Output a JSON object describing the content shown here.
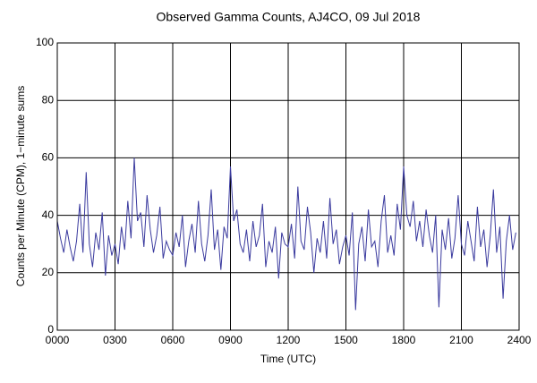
{
  "chart_data": {
    "type": "line",
    "title": "Observed Gamma Counts, AJ4CO, 09 Jul 2018",
    "x_label": "Time (UTC)",
    "y_label": "Counts per Minute (CPM), 1−minute sums",
    "x": [
      0,
      10,
      20,
      30,
      40,
      50,
      60,
      70,
      80,
      90,
      100,
      110,
      120,
      130,
      140,
      150,
      160,
      170,
      180,
      190,
      200,
      210,
      220,
      230,
      240,
      250,
      260,
      270,
      280,
      290,
      300,
      310,
      320,
      330,
      340,
      350,
      360,
      370,
      380,
      390,
      400,
      410,
      420,
      430,
      440,
      450,
      460,
      470,
      480,
      490,
      500,
      510,
      520,
      530,
      540,
      550,
      560,
      570,
      580,
      590,
      600,
      610,
      620,
      630,
      640,
      650,
      660,
      670,
      680,
      690,
      700,
      710,
      720,
      730,
      740,
      750,
      760,
      770,
      780,
      790,
      800,
      810,
      820,
      830,
      840,
      850,
      860,
      870,
      880,
      890,
      900,
      910,
      920,
      930,
      940,
      950,
      960,
      970,
      980,
      990,
      1000,
      1010,
      1020,
      1030,
      1040,
      1050,
      1060,
      1070,
      1080,
      1090,
      1100,
      1110,
      1120,
      1130,
      1140,
      1150,
      1160,
      1170,
      1180,
      1190,
      1200,
      1210,
      1220,
      1230,
      1240,
      1250,
      1260,
      1270,
      1280,
      1290,
      1300,
      1310,
      1320,
      1330,
      1340,
      1350,
      1360,
      1370,
      1380,
      1390,
      1400,
      1410,
      1420,
      1430
    ],
    "series": [
      {
        "color": "#3a3a9e",
        "values": [
          38,
          32,
          27,
          35,
          29,
          24,
          31,
          44,
          27,
          55,
          30,
          22,
          34,
          28,
          41,
          19,
          33,
          26,
          30,
          23,
          36,
          28,
          45,
          32,
          60,
          38,
          41,
          29,
          47,
          35,
          27,
          33,
          43,
          25,
          31,
          28,
          26,
          34,
          29,
          40,
          22,
          31,
          37,
          27,
          45,
          30,
          24,
          33,
          49,
          28,
          35,
          21,
          36,
          32,
          57,
          38,
          42,
          30,
          27,
          35,
          24,
          38,
          29,
          33,
          44,
          22,
          31,
          27,
          36,
          18,
          34,
          30,
          29,
          37,
          25,
          50,
          31,
          28,
          43,
          34,
          20,
          32,
          27,
          38,
          25,
          46,
          30,
          35,
          23,
          29,
          33,
          26,
          41,
          7,
          30,
          36,
          24,
          42,
          29,
          31,
          22,
          38,
          47,
          27,
          33,
          26,
          44,
          35,
          57,
          40,
          36,
          45,
          31,
          38,
          29,
          42,
          33,
          27,
          40,
          8,
          35,
          28,
          39,
          25,
          32,
          47,
          30,
          26,
          38,
          31,
          24,
          43,
          29,
          35,
          22,
          33,
          49,
          27,
          36,
          11,
          31,
          40,
          28,
          34
        ]
      }
    ],
    "xlim": [
      0,
      1440
    ],
    "xticks": [
      {
        "value": 0,
        "label": "0000"
      },
      {
        "value": 180,
        "label": "0300"
      },
      {
        "value": 360,
        "label": "0600"
      },
      {
        "value": 540,
        "label": "0900"
      },
      {
        "value": 720,
        "label": "1200"
      },
      {
        "value": 900,
        "label": "1500"
      },
      {
        "value": 1080,
        "label": "1800"
      },
      {
        "value": 1260,
        "label": "2100"
      },
      {
        "value": 1440,
        "label": "2400"
      }
    ],
    "ylim": [
      0,
      100
    ],
    "yticks": [
      0,
      20,
      40,
      60,
      80,
      100
    ],
    "grid": true
  }
}
